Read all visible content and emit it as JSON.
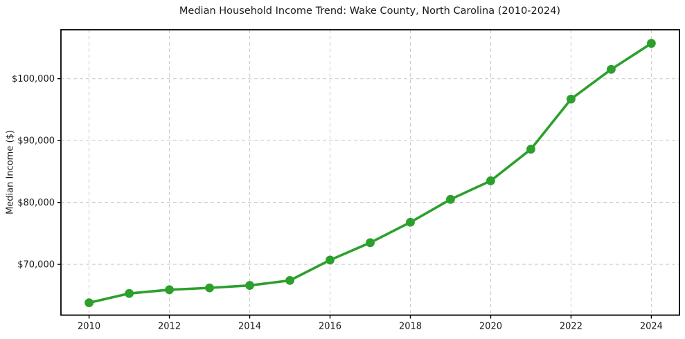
{
  "chart_data": {
    "type": "line",
    "title": "Median Household Income Trend: Wake County, North Carolina (2010-2024)",
    "xlabel": "",
    "ylabel": "Median Income ($)",
    "series_name": "Median Household Income",
    "x": [
      2010,
      2011,
      2012,
      2013,
      2014,
      2015,
      2016,
      2017,
      2018,
      2019,
      2020,
      2021,
      2022,
      2023,
      2024
    ],
    "values": [
      63800,
      65300,
      65900,
      66200,
      66600,
      67400,
      70700,
      73500,
      76800,
      80500,
      83500,
      88600,
      96700,
      101500,
      105700
    ],
    "xticks": {
      "values": [
        2010,
        2012,
        2014,
        2016,
        2018,
        2020,
        2022,
        2024
      ],
      "labels": [
        "2010",
        "2012",
        "2014",
        "2016",
        "2018",
        "2020",
        "2022",
        "2024"
      ]
    },
    "yticks": {
      "values": [
        70000,
        80000,
        90000,
        100000
      ],
      "labels": [
        "$70,000",
        "$80,000",
        "$90,000",
        "$100,000"
      ]
    },
    "xlim": [
      2009.3,
      2024.7
    ],
    "ylim": [
      61800,
      107900
    ],
    "grid": true,
    "grid_style": "dashed",
    "legend": "none",
    "marker": "circle",
    "colors": {
      "line": "#2ca02c",
      "marker": "#2ca02c",
      "grid": "#c9c9c9",
      "spine": "#000000",
      "text": "#1a1a1a",
      "background": "#ffffff"
    }
  }
}
